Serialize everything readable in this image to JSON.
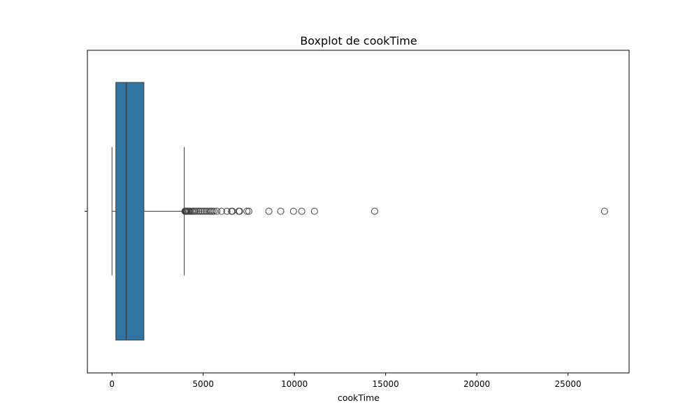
{
  "chart_data": {
    "type": "boxplot",
    "title": "Boxplot de cookTime",
    "xlabel": "cookTime",
    "ylabel": "",
    "orientation": "horizontal",
    "xlim": [
      -1350,
      28350
    ],
    "xticks": [
      0,
      5000,
      10000,
      15000,
      20000,
      25000
    ],
    "xtick_labels": [
      "0",
      "5000",
      "10000",
      "15000",
      "20000",
      "25000"
    ],
    "grid": false,
    "box": {
      "whisker_low": 0,
      "q1": 210,
      "median": 780,
      "q3": 1750,
      "whisker_high": 3960,
      "color": "#3274a1",
      "edge_color": "#3f3f3f"
    },
    "outliers": [
      4000,
      4020,
      4050,
      4080,
      4100,
      4150,
      4200,
      4250,
      4320,
      4400,
      4480,
      4560,
      4650,
      4750,
      4850,
      4950,
      5050,
      5150,
      5250,
      5350,
      5420,
      5500,
      5600,
      5750,
      6000,
      6300,
      6550,
      6600,
      6950,
      7000,
      7400,
      7500,
      8600,
      9250,
      9950,
      10400,
      11100,
      14400,
      27000
    ]
  }
}
